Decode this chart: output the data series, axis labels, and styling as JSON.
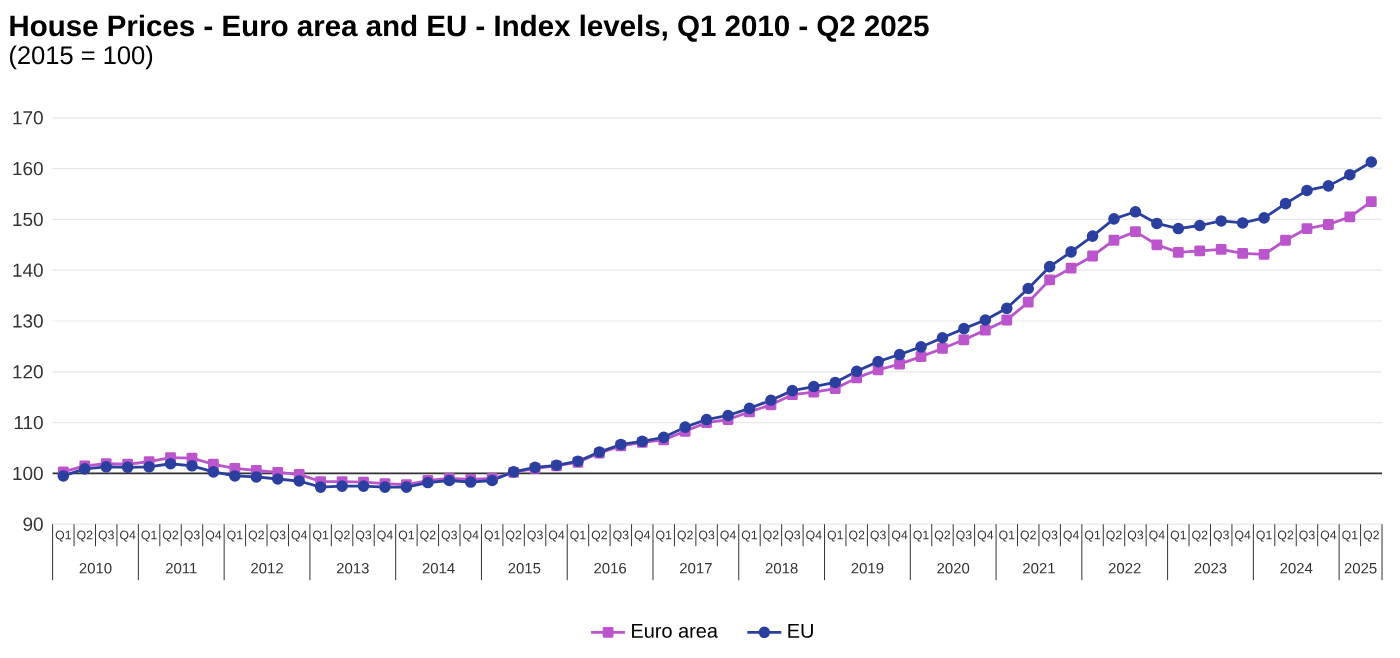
{
  "chart_data": {
    "type": "line",
    "title": "House Prices - Euro area and EU - Index levels, Q1 2010 - Q2 2025",
    "subtitle": "(2015 = 100)",
    "categories": [
      "Q1",
      "Q2",
      "Q3",
      "Q4",
      "Q1",
      "Q2",
      "Q3",
      "Q4",
      "Q1",
      "Q2",
      "Q3",
      "Q4",
      "Q1",
      "Q2",
      "Q3",
      "Q4",
      "Q1",
      "Q2",
      "Q3",
      "Q4",
      "Q1",
      "Q2",
      "Q3",
      "Q4",
      "Q1",
      "Q2",
      "Q3",
      "Q4",
      "Q1",
      "Q2",
      "Q3",
      "Q4",
      "Q1",
      "Q2",
      "Q3",
      "Q4",
      "Q1",
      "Q2",
      "Q3",
      "Q4",
      "Q1",
      "Q2",
      "Q3",
      "Q4",
      "Q1",
      "Q2",
      "Q3",
      "Q4",
      "Q1",
      "Q2",
      "Q3",
      "Q4",
      "Q1",
      "Q2",
      "Q3",
      "Q4",
      "Q1",
      "Q2",
      "Q3",
      "Q4",
      "Q1",
      "Q2"
    ],
    "series": [
      {
        "name": "Euro area",
        "color": "#bb55cc",
        "marker": "square",
        "values": [
          100.3,
          101.5,
          101.9,
          101.8,
          102.3,
          103.1,
          103.0,
          101.8,
          101.0,
          100.6,
          100.2,
          99.8,
          98.4,
          98.4,
          98.3,
          98.0,
          97.8,
          98.6,
          99.0,
          98.8,
          99.0,
          100.2,
          101.0,
          101.5,
          102.2,
          104.0,
          105.4,
          106.1,
          106.6,
          108.3,
          110.0,
          110.6,
          112.1,
          113.5,
          115.5,
          116.0,
          116.7,
          118.8,
          120.4,
          121.5,
          123.0,
          124.6,
          126.3,
          128.2,
          130.2,
          133.7,
          138.1,
          140.4,
          142.8,
          145.9,
          147.6,
          145.0,
          143.5,
          143.8,
          144.1,
          143.3,
          143.1,
          145.9,
          148.2,
          149.0,
          150.5,
          153.5
        ]
      },
      {
        "name": "EU",
        "color": "#2b3f9f",
        "marker": "circle",
        "values": [
          99.5,
          100.9,
          101.3,
          101.2,
          101.3,
          101.9,
          101.5,
          100.3,
          99.5,
          99.3,
          98.9,
          98.5,
          97.3,
          97.5,
          97.5,
          97.3,
          97.3,
          98.2,
          98.6,
          98.3,
          98.6,
          100.3,
          101.2,
          101.6,
          102.4,
          104.2,
          105.7,
          106.3,
          107.1,
          109.1,
          110.6,
          111.4,
          112.8,
          114.4,
          116.3,
          117.1,
          117.9,
          120.1,
          122.0,
          123.4,
          124.9,
          126.7,
          128.5,
          130.2,
          132.5,
          136.4,
          140.7,
          143.6,
          146.7,
          150.1,
          151.5,
          149.2,
          148.2,
          148.8,
          149.7,
          149.3,
          150.3,
          153.1,
          155.7,
          156.6,
          158.8,
          161.3
        ]
      }
    ],
    "ylim": [
      90,
      170
    ],
    "yticks": [
      90,
      100,
      110,
      120,
      130,
      140,
      150,
      160,
      170
    ],
    "grid": "y",
    "legend": "bottom",
    "ref_lines": [
      {
        "axis": "y",
        "value": 100,
        "color": "#333333"
      }
    ],
    "annotations": [
      "2010",
      "2011",
      "2012",
      "2013",
      "2014",
      "2015",
      "2016",
      "2017",
      "2018",
      "2019",
      "2020",
      "2021",
      "2022",
      "2023",
      "2024",
      "2025"
    ]
  }
}
